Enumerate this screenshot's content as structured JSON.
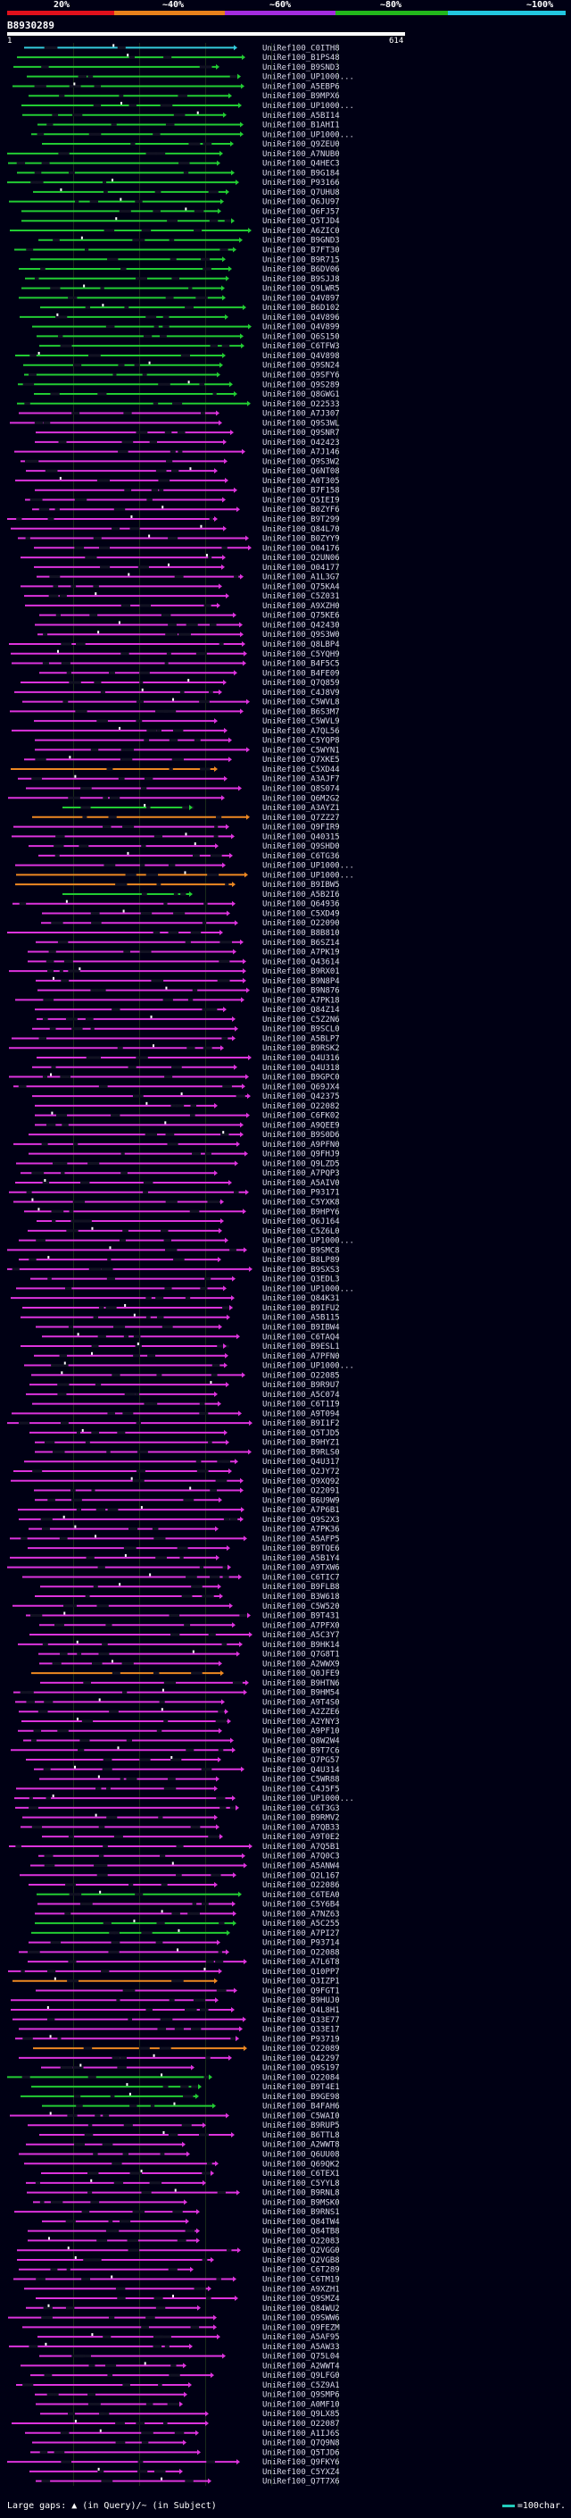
{
  "scale": {
    "labels": [
      "20%",
      "~40%",
      "~60%",
      "~80%",
      "~100%"
    ],
    "colors": [
      "#e0101c",
      "#e8811c",
      "#a42ce0",
      "#22b81c",
      "#22c6e0"
    ]
  },
  "query": {
    "id": "B8930289",
    "start": "1",
    "end": "614"
  },
  "legend": {
    "gaps_text": "Large gaps: ▲ (in Query)/~ (in Subject)",
    "char_text": "=100char."
  },
  "identity_colors": {
    "green": "#22cc33",
    "magenta": "#dd33dd",
    "orange": "#ee8822",
    "cyan": "#33ccdd"
  },
  "hits": [
    "UniRef100_C0ITH8",
    "UniRef100_B1PS48",
    "UniRef100_B9SND3",
    "UniRef100_UP1000...",
    "UniRef100_A5EBP6",
    "UniRef100_B9MPX6",
    "UniRef100_UP1000...",
    "UniRef100_A5BI14",
    "UniRef100_B1AHI1",
    "UniRef100_UP1000...",
    "UniRef100_Q9ZEU0",
    "UniRef100_A7NUB0",
    "UniRef100_Q4HEC3",
    "UniRef100_B9G184",
    "UniRef100_P93166",
    "UniRef100_Q7UHU8",
    "UniRef100_Q6JU97",
    "UniRef100_Q6FJ57",
    "UniRef100_Q5TJD4",
    "UniRef100_A6ZIC0",
    "UniRef100_B9GND3",
    "UniRef100_B7FT30",
    "UniRef100_B9R715",
    "UniRef100_B6DV06",
    "UniRef100_B9SJJ8",
    "UniRef100_Q9LWR5",
    "UniRef100_Q4V897",
    "UniRef100_B6D102",
    "UniRef100_Q4V896",
    "UniRef100_Q4V899",
    "UniRef100_Q6S150",
    "UniRef100_C6TFW3",
    "UniRef100_Q4V898",
    "UniRef100_Q9SN24",
    "UniRef100_Q9SFY6",
    "UniRef100_Q9S289",
    "UniRef100_Q8GWG1",
    "UniRef100_O22533",
    "UniRef100_A7J307",
    "UniRef100_Q9S3WL",
    "UniRef100_Q9SNR7",
    "UniRef100_O42423",
    "UniRef100_A7J146",
    "UniRef100_Q9S3W2",
    "UniRef100_Q6NT08",
    "UniRef100_A0T305",
    "UniRef100_B7F158",
    "UniRef100_Q5IEI9",
    "UniRef100_B0ZYF6",
    "UniRef100_B9T299",
    "UniRef100_Q84L70",
    "UniRef100_B0ZYY9",
    "UniRef100_O04176",
    "UniRef100_Q2UN06",
    "UniRef100_O04177",
    "UniRef100_A1L3G7",
    "UniRef100_Q75KA4",
    "UniRef100_C5Z031",
    "UniRef100_A9XZH0",
    "UniRef100_Q75KE6",
    "UniRef100_Q42430",
    "UniRef100_Q9S3W0",
    "UniRef100_Q8LBP4",
    "UniRef100_C5YQH9",
    "UniRef100_B4F5C5",
    "UniRef100_B4FE09",
    "UniRef100_Q7Q859",
    "UniRef100_C4J8V9",
    "UniRef100_C5WVL8",
    "UniRef100_B6S3M7",
    "UniRef100_C5WVL9",
    "UniRef100_A7QL56",
    "UniRef100_C5YQP8",
    "UniRef100_C5WYN1",
    "UniRef100_Q7XKE5",
    "UniRef100_C5XD44",
    "UniRef100_A3AJF7",
    "UniRef100_Q8S074",
    "UniRef100_Q6M2G2",
    "UniRef100_A3AYZ1",
    "UniRef100_Q7ZZ27",
    "UniRef100_Q9FIR9",
    "UniRef100_Q40315",
    "UniRef100_Q9SHD0",
    "UniRef100_C6TG36",
    "UniRef100_UP1000...",
    "UniRef100_UP1000...",
    "UniRef100_B9IBW5",
    "UniRef100_A5B2I6",
    "UniRef100_Q64936",
    "UniRef100_C5XD49",
    "UniRef100_O22090",
    "UniRef100_B8B810",
    "UniRef100_B6SZ14",
    "UniRef100_A7PK19",
    "UniRef100_Q43614",
    "UniRef100_B9RX01",
    "UniRef100_B9N8P4",
    "UniRef100_B9N876",
    "UniRef100_A7PK18",
    "UniRef100_Q84Z14",
    "UniRef100_C5Z2N6",
    "UniRef100_B9SCL0",
    "UniRef100_A5BLP7",
    "UniRef100_B9RSK2",
    "UniRef100_Q4U316",
    "UniRef100_Q4U318",
    "UniRef100_B9GPC0",
    "UniRef100_Q69JX4",
    "UniRef100_Q42375",
    "UniRef100_O22082",
    "UniRef100_C6FK02",
    "UniRef100_A9QEE9",
    "UniRef100_B9S0D6",
    "UniRef100_A9PFN0",
    "UniRef100_Q9FHJ9",
    "UniRef100_Q9LZD5",
    "UniRef100_A7PQP3",
    "UniRef100_A5AIV0",
    "UniRef100_P93171",
    "UniRef100_C5YXK8",
    "UniRef100_B9HPY6",
    "UniRef100_Q6J164",
    "UniRef100_C5Z6L0",
    "UniRef100_UP1000...",
    "UniRef100_B9SMC8",
    "UniRef100_B8LP89",
    "UniRef100_B9SXS3",
    "UniRef100_Q3EDL3",
    "UniRef100_UP1000...",
    "UniRef100_Q84K31",
    "UniRef100_B9IFU2",
    "UniRef100_A5B115",
    "UniRef100_B9IBW4",
    "UniRef100_C6TAQ4",
    "UniRef100_B9ESL1",
    "UniRef100_A7PFN0",
    "UniRef100_UP1000...",
    "UniRef100_O22085",
    "UniRef100_B9R9U7",
    "UniRef100_A5C074",
    "UniRef100_C6T1I9",
    "UniRef100_A9T094",
    "UniRef100_B9I1F2",
    "UniRef100_Q5TJD5",
    "UniRef100_B9HYZ1",
    "UniRef100_B9RLS0",
    "UniRef100_Q4U317",
    "UniRef100_Q2JY72",
    "UniRef100_Q9XQ92",
    "UniRef100_O22091",
    "UniRef100_B6U9W9",
    "UniRef100_A7P6B1",
    "UniRef100_Q9S2X3",
    "UniRef100_A7PK36",
    "UniRef100_A5AFP5",
    "UniRef100_B9TQE6",
    "UniRef100_A5B1Y4",
    "UniRef100_A9TXW6",
    "UniRef100_C6TIC7",
    "UniRef100_B9FLB8",
    "UniRef100_B3W618",
    "UniRef100_C5W520",
    "UniRef100_B9T431",
    "UniRef100_A7PFX0",
    "UniRef100_A5C3Y7",
    "UniRef100_B9HK14",
    "UniRef100_Q7G8T1",
    "UniRef100_A2WWX9",
    "UniRef100_Q0JFE9",
    "UniRef100_B9HTN6",
    "UniRef100_B9HM54",
    "UniRef100_A9T4S0",
    "UniRef100_A2ZZE6",
    "UniRef100_A2YNY3",
    "UniRef100_A9PF10",
    "UniRef100_Q8W2W4",
    "UniRef100_B9T7C6",
    "UniRef100_Q7PG57",
    "UniRef100_Q4U314",
    "UniRef100_C5WR88",
    "UniRef100_C4J5F5",
    "UniRef100_UP1000...",
    "UniRef100_C6T3G3",
    "UniRef100_B9RMV2",
    "UniRef100_A7QB33",
    "UniRef100_A9T0E2",
    "UniRef100_A7Q5B1",
    "UniRef100_A7Q0C3",
    "UniRef100_A5ANW4",
    "UniRef100_Q2L167",
    "UniRef100_O22086",
    "UniRef100_C6TEA0",
    "UniRef100_C5Y6B4",
    "UniRef100_A7NZ63",
    "UniRef100_A5C255",
    "UniRef100_A7PI27",
    "UniRef100_P93714",
    "UniRef100_O22088",
    "UniRef100_A7L6T8",
    "UniRef100_Q10PP7",
    "UniRef100_Q3IZP1",
    "UniRef100_Q9FGT1",
    "UniRef100_B9HUJ0",
    "UniRef100_Q4L8H1",
    "UniRef100_Q33E77",
    "UniRef100_Q33E17",
    "UniRef100_P93719",
    "UniRef100_O22089",
    "UniRef100_Q42297",
    "UniRef100_Q9S197",
    "UniRef100_O22084",
    "UniRef100_B9T4E1",
    "UniRef100_B9GE98",
    "UniRef100_B4FAH6",
    "UniRef100_C5WAI0",
    "UniRef100_B9RUP5",
    "UniRef100_B6TTL8",
    "UniRef100_A2WWT8",
    "UniRef100_Q6UU08",
    "UniRef100_Q69QK2",
    "UniRef100_C6TEX1",
    "UniRef100_C5YYL8",
    "UniRef100_B9RNL8",
    "UniRef100_B9MSK0",
    "UniRef100_B9RNS1",
    "UniRef100_Q84TW4",
    "UniRef100_Q84TB8",
    "UniRef100_O22083",
    "UniRef100_Q2VGG0",
    "UniRef100_Q2VGB8",
    "UniRef100_C6T289",
    "UniRef100_C6TM19",
    "UniRef100_A9XZH1",
    "UniRef100_Q9SMZ4",
    "UniRef100_Q84WU2",
    "UniRef100_Q9SWW6",
    "UniRef100_Q9FEZM",
    "UniRef100_A5AF95",
    "UniRef100_A5AW33",
    "UniRef100_Q75L04",
    "UniRef100_A2WWT4",
    "UniRef100_Q9LFG0",
    "UniRef100_C5Z9A1",
    "UniRef100_Q9SMP6",
    "UniRef100_A0MF10",
    "UniRef100_Q9LX85",
    "UniRef100_O22087",
    "UniRef100_A1IJ6S",
    "UniRef100_Q7Q9N8",
    "UniRef100_Q5TJD6",
    "UniRef100_Q9FKY6",
    "UniRef100_C5YXZ4",
    "UniRef100_Q7T7X6"
  ]
}
